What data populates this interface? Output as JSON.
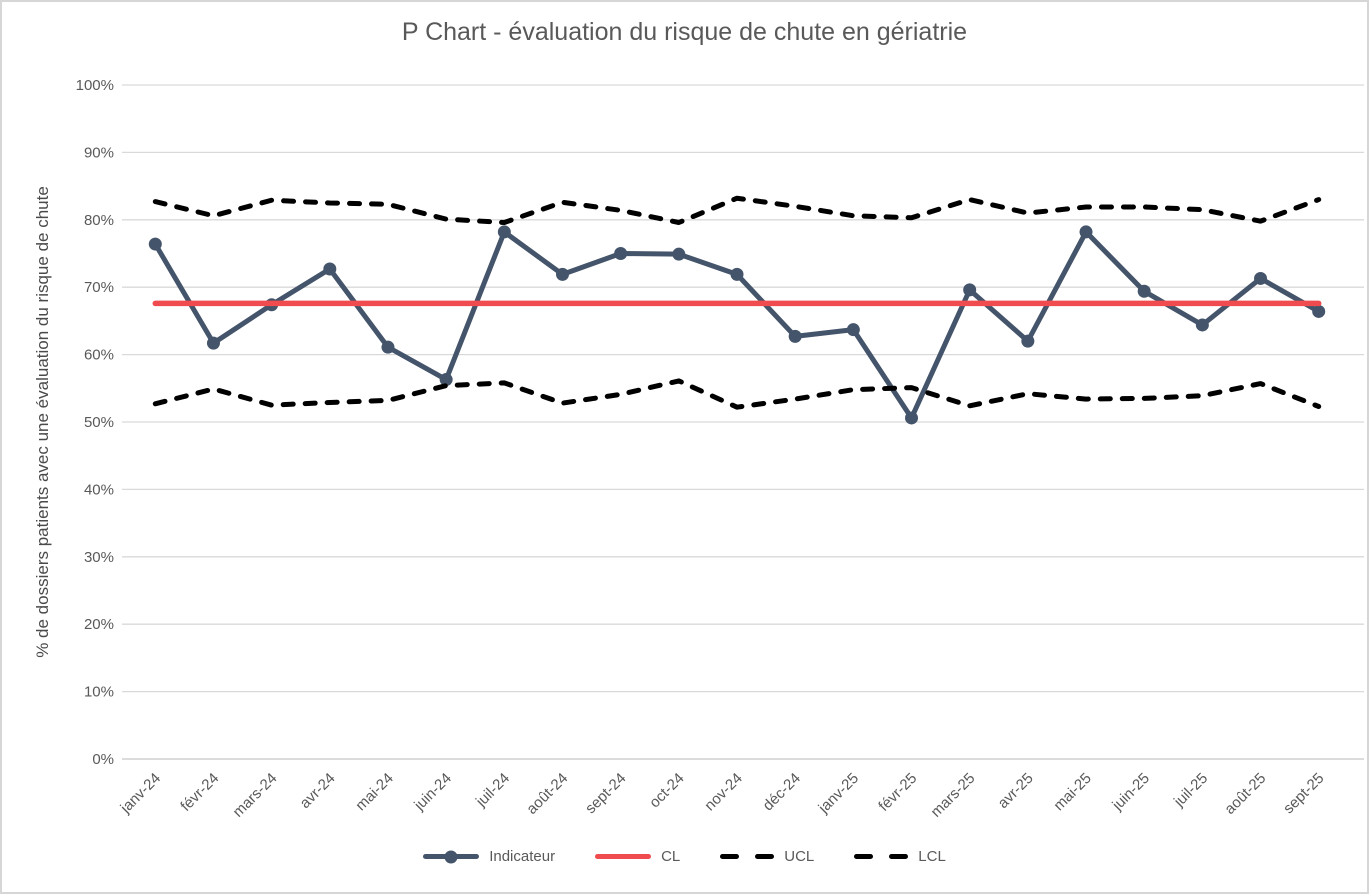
{
  "chart_data": {
    "type": "line",
    "title": "P Chart - évaluation du risque de chute en gériatrie",
    "ylabel": "% de dossiers patients avec une évaluation du risque de chute",
    "xlabel": "",
    "ylim": [
      0,
      100
    ],
    "y_tick_step": 10,
    "y_tick_labels": [
      "0%",
      "10%",
      "20%",
      "30%",
      "40%",
      "50%",
      "60%",
      "70%",
      "80%",
      "90%",
      "100%"
    ],
    "grid": "horizontal",
    "legend_position": "bottom",
    "categories": [
      "janv-24",
      "févr-24",
      "mars-24",
      "avr-24",
      "mai-24",
      "juin-24",
      "juil-24",
      "août-24",
      "sept-24",
      "oct-24",
      "nov-24",
      "déc-24",
      "janv-25",
      "févr-25",
      "mars-25",
      "avr-25",
      "mai-25",
      "juin-25",
      "juil-25",
      "août-25",
      "sept-25"
    ],
    "series": [
      {
        "name": "Indicateur",
        "style": "solid",
        "markers": true,
        "color": "#44546A",
        "width": 5,
        "values": [
          76.4,
          61.7,
          67.4,
          72.7,
          61.1,
          56.3,
          78.2,
          71.9,
          75.0,
          74.9,
          71.9,
          62.7,
          63.7,
          50.6,
          69.6,
          62.0,
          78.2,
          69.4,
          64.4,
          71.3,
          66.4
        ]
      },
      {
        "name": "CL",
        "style": "solid",
        "markers": false,
        "color": "#F04B4F",
        "width": 5.5,
        "constant_value": 67.6
      },
      {
        "name": "UCL",
        "style": "dash",
        "markers": false,
        "color": "#000000",
        "width": 5,
        "values": [
          82.7,
          80.6,
          82.9,
          82.5,
          82.3,
          80.1,
          79.6,
          82.6,
          81.4,
          79.6,
          83.2,
          82.0,
          80.6,
          80.3,
          83.0,
          81.0,
          81.9,
          81.9,
          81.5,
          79.8,
          83.0
        ]
      },
      {
        "name": "LCL",
        "style": "dash",
        "markers": false,
        "color": "#000000",
        "width": 5,
        "values": [
          52.7,
          54.9,
          52.5,
          52.9,
          53.2,
          55.4,
          55.8,
          52.8,
          54.1,
          56.1,
          52.2,
          53.4,
          54.8,
          55.1,
          52.4,
          54.2,
          53.4,
          53.5,
          53.9,
          55.7,
          52.3
        ]
      }
    ]
  }
}
